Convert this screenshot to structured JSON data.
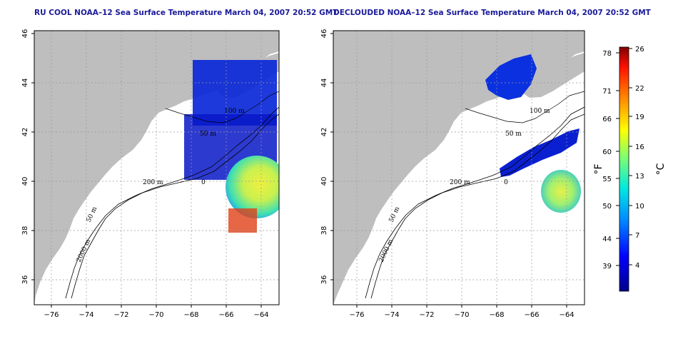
{
  "panels": [
    {
      "id": "left",
      "title": "RU COOL NOAA–12 Sea Surface Temperature March 04, 2007 20:52 GMT"
    },
    {
      "id": "right",
      "title": "DECLOUDED NOAA–12 Sea Surface Temperature March 04, 2007 20:52 GMT"
    }
  ],
  "map": {
    "lon_ticks": [
      "−76",
      "−74",
      "−72",
      "−70",
      "−68",
      "−66",
      "−64"
    ],
    "lat_ticks": [
      "36",
      "38",
      "40",
      "42",
      "44",
      "46"
    ],
    "lon_range": [
      -77,
      -63
    ],
    "lat_range": [
      35,
      46
    ],
    "contour_labels": [
      "100 m",
      "100 m",
      "50 m",
      "200 m",
      "0",
      "50 m",
      "2000 m"
    ],
    "land_color": "#bebebe",
    "grid_style": "dotted"
  },
  "colorbar": {
    "fahrenheit_ticks": [
      "78",
      "71",
      "66",
      "60",
      "55",
      "50",
      "44",
      "39"
    ],
    "celsius_ticks": [
      "26",
      "22",
      "19",
      "16",
      "13",
      "10",
      "7",
      "4"
    ],
    "fahrenheit_unit": "°F",
    "celsius_unit": "°C"
  }
}
